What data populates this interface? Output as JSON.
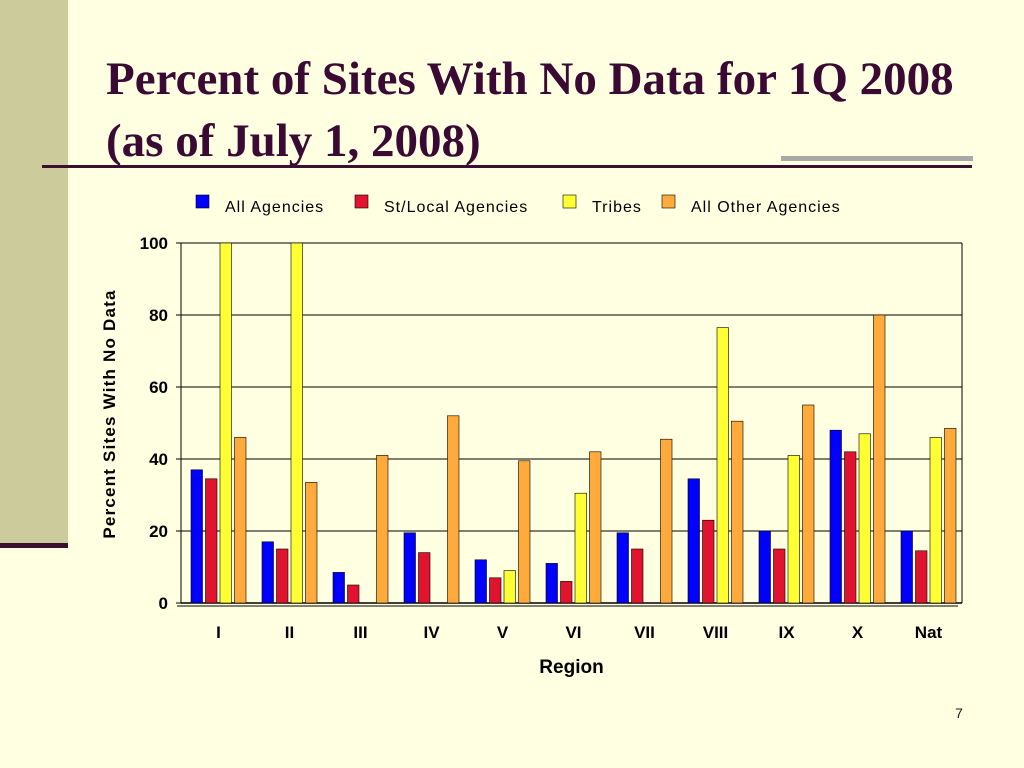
{
  "slide": {
    "title": "Percent of Sites With No Data for 1Q 2008 (as of July 1, 2008)",
    "number": "7"
  },
  "colors": {
    "background": "#FFFFE1",
    "title": "#3A0A35",
    "accent_band": "#CCCB9B"
  },
  "chart_data": {
    "type": "bar",
    "xlabel": "Region",
    "ylabel": "Percent Sites With No Data",
    "ylim": [
      0,
      100
    ],
    "yticks": [
      "0",
      "20",
      "40",
      "60",
      "80",
      "100"
    ],
    "grid": true,
    "legend_position": "top",
    "categories": [
      "I",
      "II",
      "III",
      "IV",
      "V",
      "VI",
      "VII",
      "VIII",
      "IX",
      "X",
      "Nat"
    ],
    "series": [
      {
        "name": "All Agencies",
        "color": "#0000FF",
        "values": [
          37,
          17,
          8.5,
          19.5,
          12,
          11,
          19.5,
          34.5,
          20,
          48,
          20
        ]
      },
      {
        "name": "St/Local Agencies",
        "color": "#E0142E",
        "values": [
          34.5,
          15,
          5,
          14,
          7,
          6,
          15,
          23,
          15,
          42,
          14.5
        ]
      },
      {
        "name": "Tribes",
        "color": "#FFFF33",
        "values": [
          100,
          100,
          null,
          null,
          9,
          30.5,
          null,
          76.5,
          41,
          47,
          46
        ]
      },
      {
        "name": "All Other Agencies",
        "color": "#FFAA3A",
        "values": [
          46,
          33.5,
          41,
          52,
          39.5,
          42,
          45.5,
          50.5,
          55,
          80,
          48.5
        ]
      }
    ]
  }
}
